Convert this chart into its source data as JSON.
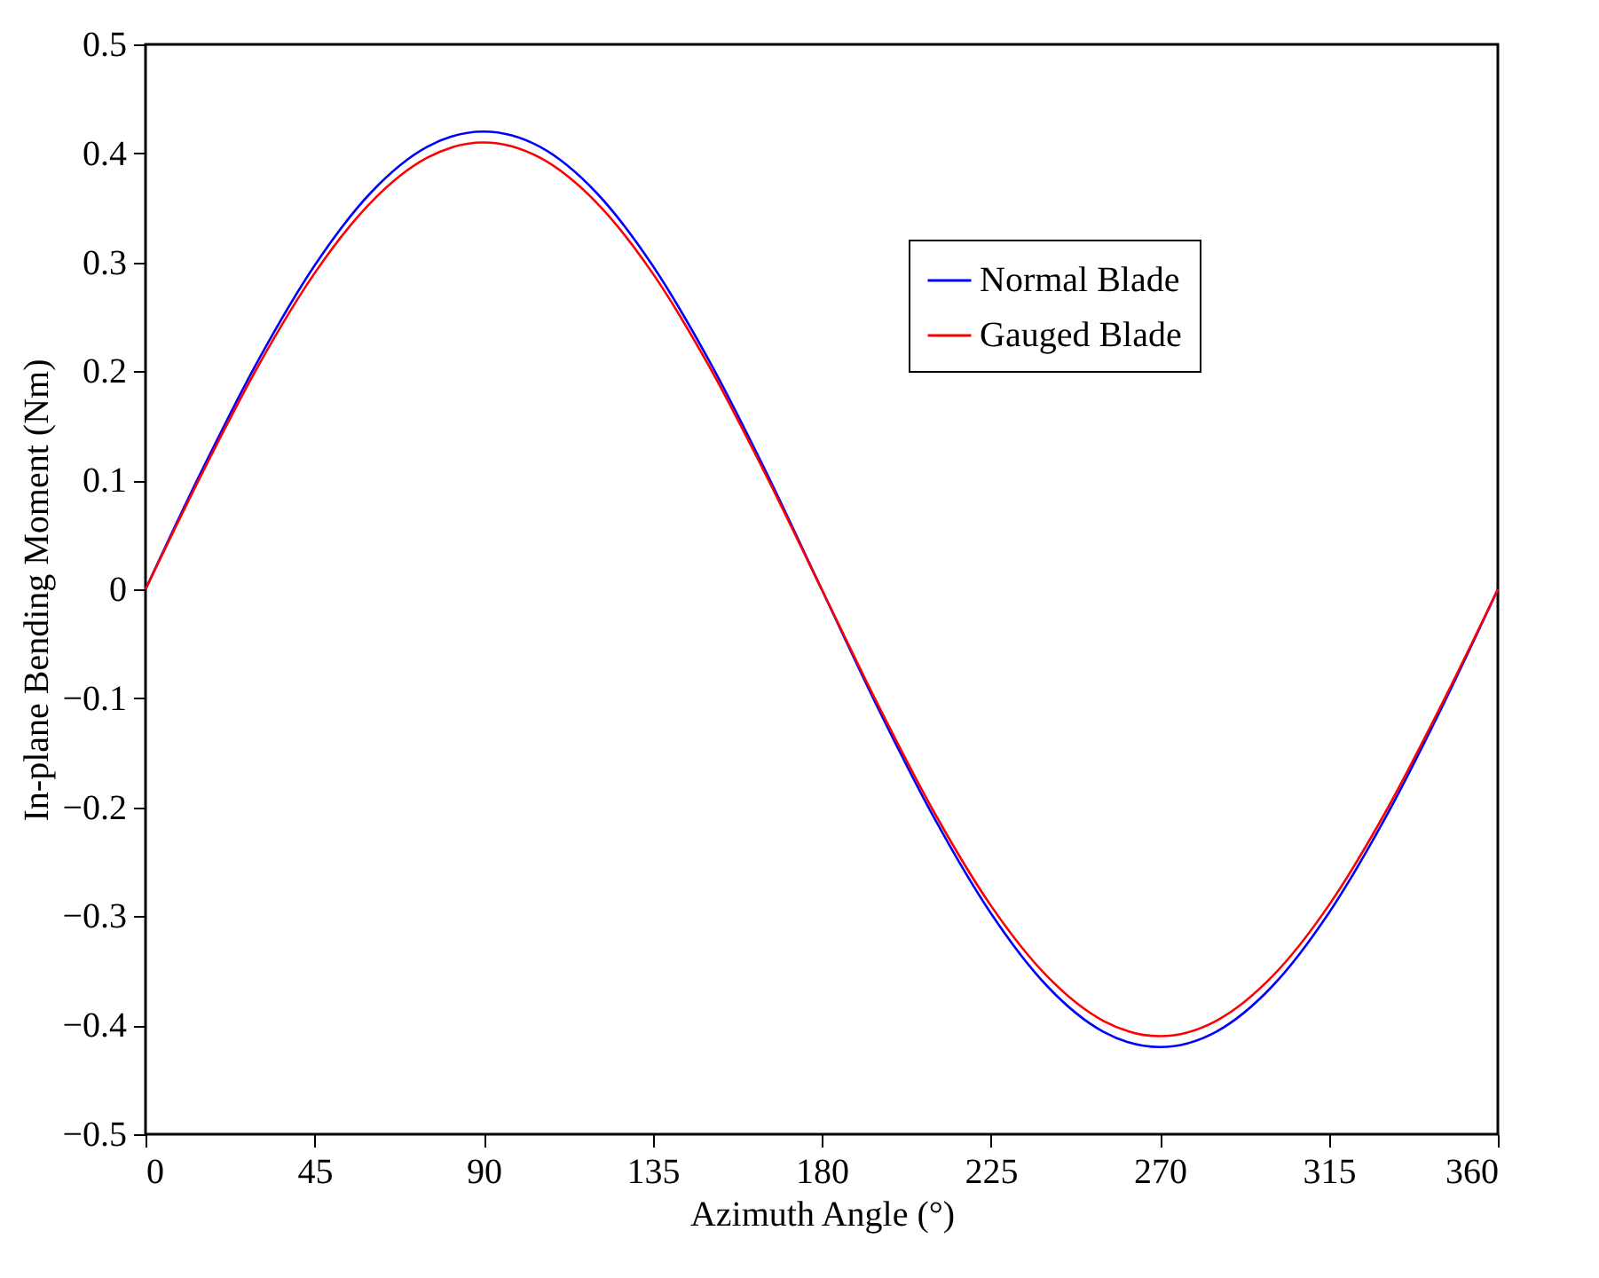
{
  "chart_data": {
    "type": "line",
    "xlabel": "Azimuth Angle (°)",
    "ylabel": "In-plane Bending Moment (Nm)",
    "x": [
      0,
      15,
      30,
      45,
      60,
      75,
      90,
      105,
      120,
      135,
      150,
      165,
      180,
      195,
      210,
      225,
      240,
      255,
      270,
      285,
      300,
      315,
      330,
      345,
      360
    ],
    "series": [
      {
        "name": "Normal Blade",
        "color": "#0000ff",
        "values": [
          0,
          0.109,
          0.21,
          0.297,
          0.364,
          0.406,
          0.42,
          0.406,
          0.364,
          0.297,
          0.21,
          0.109,
          0,
          -0.109,
          -0.21,
          -0.297,
          -0.364,
          -0.406,
          -0.42,
          -0.406,
          -0.364,
          -0.297,
          -0.21,
          -0.109,
          0
        ]
      },
      {
        "name": "Gauged Blade",
        "color": "#ff0000",
        "values": [
          0,
          0.106,
          0.205,
          0.29,
          0.355,
          0.396,
          0.41,
          0.396,
          0.355,
          0.29,
          0.205,
          0.106,
          0,
          -0.106,
          -0.205,
          -0.29,
          -0.355,
          -0.396,
          -0.41,
          -0.396,
          -0.355,
          -0.29,
          -0.205,
          -0.106,
          0
        ]
      }
    ],
    "xlim": [
      0,
      360
    ],
    "xticks": [
      0,
      45,
      90,
      135,
      180,
      225,
      270,
      315,
      360
    ],
    "ylim": [
      -0.5,
      0.5
    ],
    "yticks": [
      {
        "value": -0.5,
        "label": "−0.5"
      },
      {
        "value": -0.4,
        "label": "−0.4"
      },
      {
        "value": -0.3,
        "label": "−0.3"
      },
      {
        "value": -0.2,
        "label": "−0.2"
      },
      {
        "value": -0.1,
        "label": "−0.1"
      },
      0,
      0.1,
      0.2,
      0.3,
      0.4,
      0.5
    ],
    "grid": false,
    "legend": "top right",
    "marker": "none",
    "line_style": "solid"
  }
}
